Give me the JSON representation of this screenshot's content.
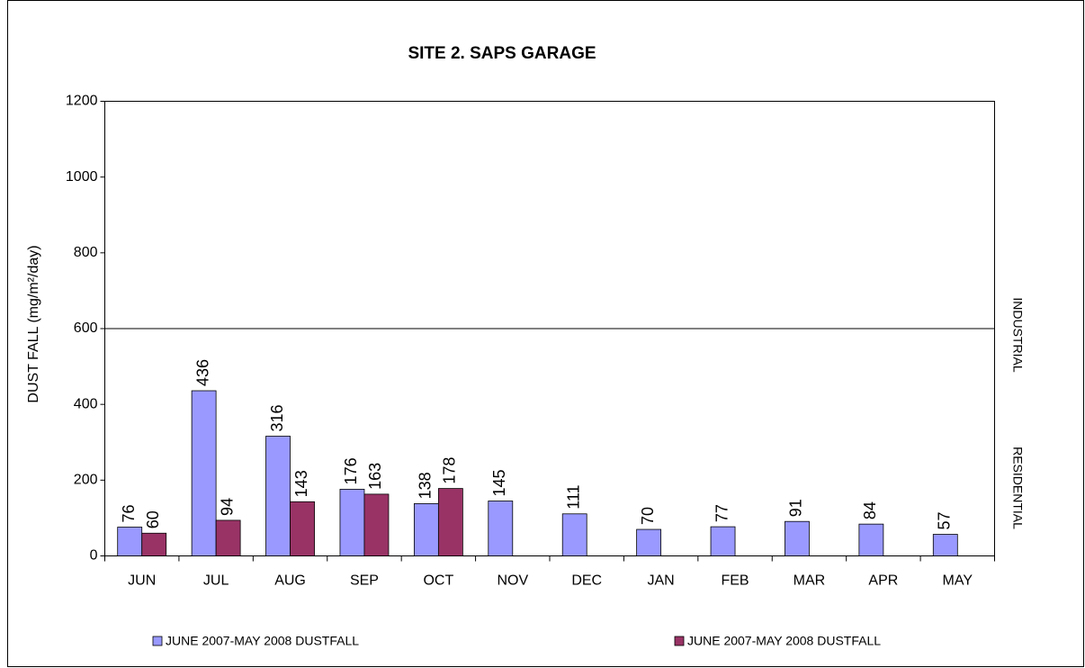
{
  "chart_data": {
    "type": "bar",
    "title": "SITE 2. SAPS GARAGE",
    "y_label": "DUST FALL  (mg/m²/day)",
    "categories": [
      "JUN",
      "JUL",
      "AUG",
      "SEP",
      "OCT",
      "NOV",
      "DEC",
      "JAN",
      "FEB",
      "MAR",
      "APR",
      "MAY"
    ],
    "series": [
      {
        "name": "JUNE 2007-MAY 2008 DUSTFALL",
        "color": "#9999ff",
        "values": [
          76,
          436,
          316,
          176,
          138,
          145,
          111,
          70,
          77,
          91,
          84,
          57
        ]
      },
      {
        "name": "JUNE 2007-MAY 2008 DUSTFALL",
        "color": "#993366",
        "values": [
          60,
          94,
          143,
          163,
          178,
          null,
          null,
          null,
          null,
          null,
          null,
          null
        ]
      }
    ],
    "ylim": [
      0,
      1200
    ],
    "yticks": [
      0,
      200,
      400,
      600,
      800,
      1000,
      1200
    ],
    "reference_line": 600,
    "annotations": [
      "INDUSTRIAL",
      "RESIDENTIAL"
    ],
    "legend": "bottom"
  }
}
